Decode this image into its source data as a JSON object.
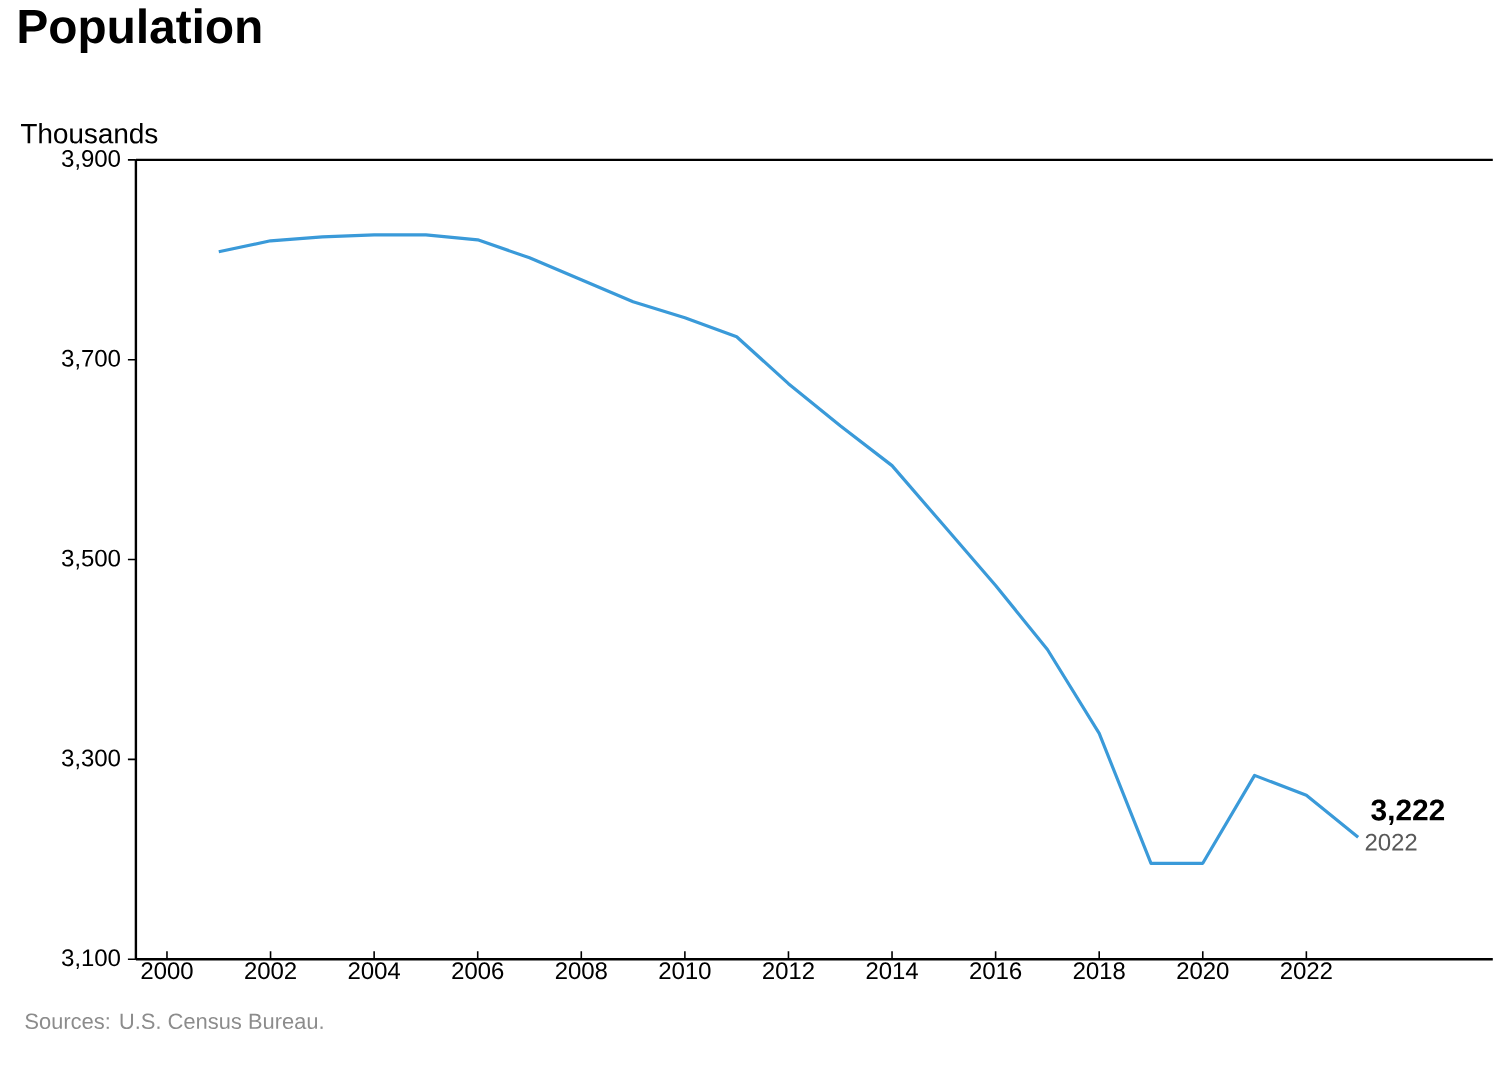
{
  "chart_data": {
    "type": "line",
    "title": "Population",
    "ylabel": "Thousands",
    "x": [
      2001,
      2002,
      2003,
      2004,
      2005,
      2006,
      2007,
      2008,
      2009,
      2010,
      2011,
      2012,
      2013,
      2014,
      2015,
      2016,
      2017,
      2018,
      2019,
      2020,
      2021,
      2022,
      2023
    ],
    "series": [
      {
        "color": "#3a9ad9",
        "values": [
          3808,
          3819,
          3823,
          3825,
          3825,
          3820,
          3802,
          3780,
          3758,
          3742,
          3723,
          3676,
          3634,
          3594,
          3534,
          3474,
          3410,
          3326,
          3196,
          3196,
          3284,
          3264,
          3222
        ]
      }
    ],
    "xlim": [
      1999.4,
      2025.6
    ],
    "xticks": [
      2000,
      2002,
      2004,
      2006,
      2008,
      2010,
      2012,
      2014,
      2016,
      2018,
      2020,
      2022
    ],
    "ylim": [
      3100,
      3900
    ],
    "yticks": [
      {
        "value": 3100,
        "label": "3,100"
      },
      {
        "value": 3300,
        "label": "3,300"
      },
      {
        "value": 3500,
        "label": "3,500"
      },
      {
        "value": 3700,
        "label": "3,700"
      },
      {
        "value": 3900,
        "label": "3,900"
      }
    ],
    "grid": false,
    "marker": "none",
    "line_style": "solid",
    "annotations": [
      {
        "text": "3,222",
        "x": 2023,
        "y": 3222
      },
      {
        "text": "2022",
        "x": 2023,
        "y": 3222
      },
      "Sources: U.S. Census Bureau."
    ]
  }
}
